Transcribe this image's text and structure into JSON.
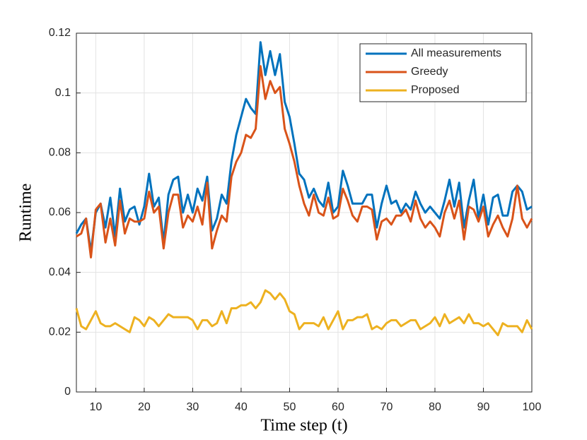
{
  "chart_data": {
    "type": "line",
    "xlabel": "Time step (t)",
    "ylabel": "Runtime",
    "x": [
      6,
      7,
      8,
      9,
      10,
      11,
      12,
      13,
      14,
      15,
      16,
      17,
      18,
      19,
      20,
      21,
      22,
      23,
      24,
      25,
      26,
      27,
      28,
      29,
      30,
      31,
      32,
      33,
      34,
      35,
      36,
      37,
      38,
      39,
      40,
      41,
      42,
      43,
      44,
      45,
      46,
      47,
      48,
      49,
      50,
      51,
      52,
      53,
      54,
      55,
      56,
      57,
      58,
      59,
      60,
      61,
      62,
      63,
      64,
      65,
      66,
      67,
      68,
      69,
      70,
      71,
      72,
      73,
      74,
      75,
      76,
      77,
      78,
      79,
      80,
      81,
      82,
      83,
      84,
      85,
      86,
      87,
      88,
      89,
      90,
      91,
      92,
      93,
      94,
      95,
      96,
      97,
      98,
      99,
      100
    ],
    "series": [
      {
        "name": "All measurements",
        "color": "#0072bd",
        "values": [
          0.053,
          0.056,
          0.058,
          0.047,
          0.06,
          0.063,
          0.055,
          0.065,
          0.052,
          0.068,
          0.057,
          0.061,
          0.062,
          0.056,
          0.062,
          0.073,
          0.062,
          0.065,
          0.05,
          0.066,
          0.071,
          0.072,
          0.06,
          0.066,
          0.06,
          0.068,
          0.064,
          0.072,
          0.054,
          0.058,
          0.066,
          0.063,
          0.077,
          0.086,
          0.092,
          0.098,
          0.095,
          0.093,
          0.117,
          0.106,
          0.114,
          0.106,
          0.113,
          0.097,
          0.092,
          0.083,
          0.073,
          0.071,
          0.065,
          0.068,
          0.064,
          0.062,
          0.07,
          0.06,
          0.062,
          0.074,
          0.069,
          0.063,
          0.063,
          0.063,
          0.066,
          0.066,
          0.055,
          0.063,
          0.069,
          0.063,
          0.064,
          0.06,
          0.063,
          0.061,
          0.067,
          0.063,
          0.06,
          0.062,
          0.06,
          0.058,
          0.064,
          0.071,
          0.062,
          0.07,
          0.055,
          0.064,
          0.071,
          0.058,
          0.066,
          0.056,
          0.065,
          0.066,
          0.059,
          0.059,
          0.067,
          0.069,
          0.067,
          0.061,
          0.062
        ]
      },
      {
        "name": "Greedy",
        "color": "#d95319",
        "values": [
          0.052,
          0.053,
          0.058,
          0.045,
          0.061,
          0.063,
          0.05,
          0.058,
          0.049,
          0.064,
          0.053,
          0.058,
          0.057,
          0.057,
          0.058,
          0.067,
          0.06,
          0.062,
          0.048,
          0.06,
          0.066,
          0.066,
          0.055,
          0.059,
          0.057,
          0.062,
          0.056,
          0.07,
          0.048,
          0.054,
          0.059,
          0.057,
          0.072,
          0.077,
          0.08,
          0.086,
          0.085,
          0.088,
          0.109,
          0.098,
          0.104,
          0.1,
          0.102,
          0.088,
          0.083,
          0.077,
          0.069,
          0.063,
          0.059,
          0.066,
          0.06,
          0.059,
          0.065,
          0.058,
          0.059,
          0.068,
          0.064,
          0.059,
          0.057,
          0.062,
          0.062,
          0.061,
          0.051,
          0.057,
          0.058,
          0.056,
          0.059,
          0.059,
          0.061,
          0.057,
          0.064,
          0.058,
          0.055,
          0.057,
          0.055,
          0.052,
          0.06,
          0.064,
          0.058,
          0.064,
          0.051,
          0.062,
          0.061,
          0.057,
          0.062,
          0.052,
          0.056,
          0.059,
          0.055,
          0.052,
          0.058,
          0.069,
          0.058,
          0.055,
          0.058
        ]
      },
      {
        "name": "Proposed",
        "color": "#edb120",
        "values": [
          0.028,
          0.022,
          0.021,
          0.024,
          0.027,
          0.023,
          0.022,
          0.022,
          0.023,
          0.022,
          0.021,
          0.02,
          0.025,
          0.024,
          0.022,
          0.025,
          0.024,
          0.022,
          0.024,
          0.026,
          0.025,
          0.025,
          0.025,
          0.025,
          0.024,
          0.021,
          0.024,
          0.024,
          0.022,
          0.023,
          0.027,
          0.023,
          0.028,
          0.028,
          0.029,
          0.029,
          0.03,
          0.028,
          0.03,
          0.034,
          0.033,
          0.031,
          0.033,
          0.031,
          0.027,
          0.026,
          0.021,
          0.023,
          0.023,
          0.023,
          0.022,
          0.025,
          0.021,
          0.024,
          0.027,
          0.021,
          0.024,
          0.024,
          0.025,
          0.025,
          0.026,
          0.021,
          0.022,
          0.021,
          0.023,
          0.024,
          0.024,
          0.022,
          0.023,
          0.024,
          0.024,
          0.021,
          0.022,
          0.023,
          0.025,
          0.022,
          0.026,
          0.023,
          0.024,
          0.025,
          0.023,
          0.026,
          0.023,
          0.023,
          0.022,
          0.023,
          0.021,
          0.019,
          0.023,
          0.022,
          0.022,
          0.022,
          0.02,
          0.024,
          0.021
        ]
      }
    ],
    "xlim": [
      6,
      100
    ],
    "xticks": [
      10,
      20,
      30,
      40,
      50,
      60,
      70,
      80,
      90,
      100
    ],
    "ylim": [
      0,
      0.12
    ],
    "yticks": [
      0,
      0.02,
      0.04,
      0.06,
      0.08,
      0.1,
      0.12
    ],
    "grid": true,
    "legend": "top-right"
  }
}
